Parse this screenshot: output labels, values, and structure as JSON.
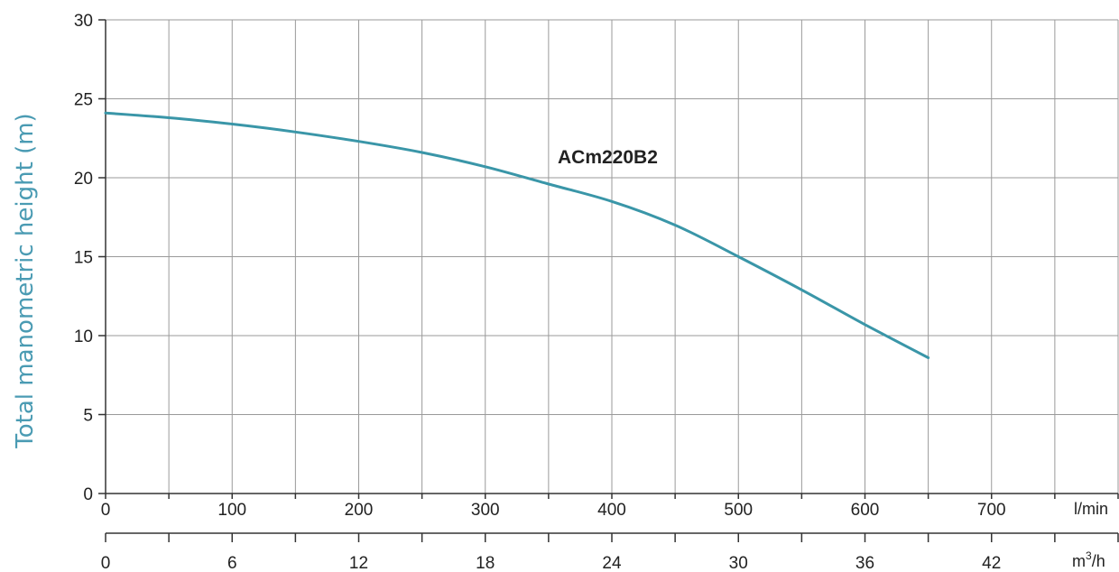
{
  "chart_data": {
    "type": "line",
    "ylabel": "Total manometric height (m)",
    "ylim": [
      0,
      30
    ],
    "y_ticks": [
      "0",
      "5",
      "10",
      "15",
      "20",
      "25",
      "30"
    ],
    "x_primary": {
      "unit": "l/min",
      "range": [
        0,
        800
      ],
      "ticks": [
        0,
        100,
        200,
        300,
        400,
        500,
        600,
        700
      ],
      "tick_labels": [
        "0",
        "100",
        "200",
        "300",
        "400",
        "500",
        "600",
        "700"
      ]
    },
    "x_secondary": {
      "unit_base": "m",
      "unit_sup": "3",
      "unit_tail": "/h",
      "range": [
        0,
        48
      ],
      "ticks": [
        0,
        6,
        12,
        18,
        24,
        30,
        36,
        42
      ],
      "tick_labels": [
        "0",
        "6",
        "12",
        "18",
        "24",
        "30",
        "36",
        "42"
      ]
    },
    "grid": true,
    "series": [
      {
        "name": "ACm220B2",
        "color": "#3a96a8",
        "x": [
          0,
          50,
          100,
          150,
          200,
          250,
          300,
          350,
          400,
          450,
          500,
          550,
          600,
          650
        ],
        "y": [
          24.1,
          23.8,
          23.4,
          22.9,
          22.3,
          21.6,
          20.7,
          19.6,
          18.5,
          17.0,
          15.0,
          12.9,
          10.7,
          8.6
        ]
      }
    ],
    "ylabel_color": "#4a9bb3"
  }
}
